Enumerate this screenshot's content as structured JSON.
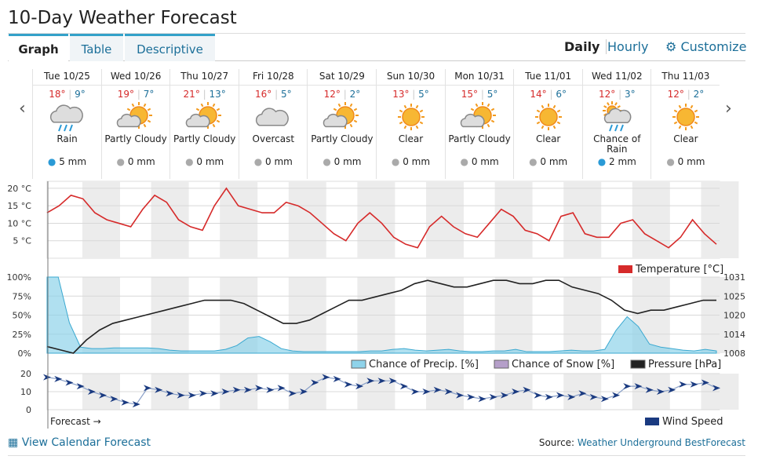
{
  "header": {
    "title": "10-Day Weather Forecast",
    "tabs": [
      "Graph",
      "Table",
      "Descriptive"
    ],
    "modes": [
      "Daily",
      "Hourly"
    ],
    "customize": "Customize"
  },
  "days": [
    {
      "day": "Tue 10/25",
      "hi": "18°",
      "lo": "9°",
      "condition": "Rain",
      "precip": "5 mm"
    },
    {
      "day": "Wed 10/26",
      "hi": "19°",
      "lo": "7°",
      "condition": "Partly Cloudy",
      "precip": "0 mm"
    },
    {
      "day": "Thu 10/27",
      "hi": "21°",
      "lo": "13°",
      "condition": "Partly Cloudy",
      "precip": "0 mm"
    },
    {
      "day": "Fri 10/28",
      "hi": "16°",
      "lo": "5°",
      "condition": "Overcast",
      "precip": "0 mm"
    },
    {
      "day": "Sat 10/29",
      "hi": "12°",
      "lo": "2°",
      "condition": "Partly Cloudy",
      "precip": "0 mm"
    },
    {
      "day": "Sun 10/30",
      "hi": "13°",
      "lo": "5°",
      "condition": "Clear",
      "precip": "0 mm"
    },
    {
      "day": "Mon 10/31",
      "hi": "15°",
      "lo": "5°",
      "condition": "Partly Cloudy",
      "precip": "0 mm"
    },
    {
      "day": "Tue 11/01",
      "hi": "14°",
      "lo": "6°",
      "condition": "Clear",
      "precip": "0 mm"
    },
    {
      "day": "Wed 11/02",
      "hi": "12°",
      "lo": "3°",
      "condition": "Chance of Rain",
      "precip": "2 mm"
    },
    {
      "day": "Thu 11/03",
      "hi": "12°",
      "lo": "2°",
      "condition": "Clear",
      "precip": "0 mm"
    }
  ],
  "temperature_chart": {
    "type": "line",
    "ylim": [
      0,
      22
    ],
    "yticks": [
      {
        "value": 5,
        "label": "5 °C"
      },
      {
        "value": 10,
        "label": "10 °C"
      },
      {
        "value": 15,
        "label": "15 °C"
      },
      {
        "value": 20,
        "label": "20 °C"
      }
    ],
    "series": [
      {
        "name": "Temperature [°C]",
        "color": "#d62a2a",
        "values": [
          13,
          15,
          18,
          17,
          13,
          11,
          10,
          9,
          14,
          18,
          16,
          11,
          9,
          8,
          15,
          20,
          15,
          14,
          13,
          13,
          16,
          15,
          13,
          10,
          7,
          5,
          10,
          13,
          10,
          6,
          4,
          3,
          9,
          12,
          9,
          7,
          6,
          10,
          14,
          12,
          8,
          7,
          5,
          12,
          13,
          7,
          6,
          6,
          10,
          11,
          7,
          5,
          3,
          6,
          11,
          7,
          4
        ]
      }
    ]
  },
  "precip_chart": {
    "type": "area",
    "ylim": [
      0,
      100
    ],
    "yticks": [
      {
        "value": 0,
        "label": "0%"
      },
      {
        "value": 25,
        "label": "25%"
      },
      {
        "value": 50,
        "label": "50%"
      },
      {
        "value": 75,
        "label": "75%"
      },
      {
        "value": 100,
        "label": "100%"
      }
    ],
    "y2lim": [
      1008,
      1031
    ],
    "y2ticks": [
      1008,
      {
        "value": 1013.75,
        "label": "1014"
      },
      {
        "value": 1019.5,
        "label": "1020"
      },
      {
        "value": 1025.25,
        "label": "1025"
      },
      1031
    ],
    "series": [
      {
        "name": "Chance of Precip. [%]",
        "color": "#8fd3ea",
        "values": [
          100,
          100,
          40,
          8,
          6,
          6,
          7,
          7,
          7,
          7,
          6,
          4,
          3,
          3,
          3,
          3,
          5,
          10,
          20,
          22,
          15,
          6,
          3,
          2,
          2,
          2,
          2,
          2,
          2,
          3,
          3,
          5,
          6,
          4,
          3,
          4,
          5,
          3,
          2,
          2,
          3,
          3,
          5,
          2,
          2,
          2,
          3,
          4,
          3,
          3,
          5,
          30,
          48,
          35,
          12,
          8,
          6,
          4,
          3,
          5,
          3
        ]
      },
      {
        "name": "Chance of Snow [%]",
        "color": "#b59fc9",
        "values": []
      },
      {
        "name": "Pressure [hPa]",
        "color": "#222222",
        "axis": "y2",
        "values": [
          1010,
          1009,
          1008,
          1012,
          1015,
          1017,
          1018,
          1019,
          1020,
          1021,
          1022,
          1023,
          1024,
          1024,
          1024,
          1023,
          1021,
          1019,
          1017,
          1017,
          1018,
          1020,
          1022,
          1024,
          1024,
          1025,
          1026,
          1027,
          1029,
          1030,
          1029,
          1028,
          1028,
          1029,
          1030,
          1030,
          1029,
          1029,
          1030,
          1030,
          1028,
          1027,
          1026,
          1024,
          1021,
          1020,
          1021,
          1021,
          1022,
          1023,
          1024,
          1024
        ]
      }
    ]
  },
  "wind_chart": {
    "type": "line",
    "ylim": [
      0,
      20
    ],
    "yticks": [
      0,
      10,
      20
    ],
    "series": [
      {
        "name": "Wind Speed",
        "color": "#1a3a80",
        "values": [
          18,
          17,
          15,
          13,
          10,
          8,
          6,
          4,
          3,
          12,
          11,
          9,
          8,
          8,
          9,
          9,
          10,
          11,
          11,
          12,
          11,
          12,
          9,
          10,
          15,
          18,
          17,
          14,
          13,
          16,
          16,
          16,
          13,
          10,
          10,
          11,
          10,
          8,
          7,
          6,
          7,
          8,
          10,
          11,
          8,
          7,
          8,
          7,
          9,
          7,
          6,
          8,
          13,
          13,
          11,
          10,
          11,
          14,
          14,
          15,
          12
        ]
      }
    ],
    "annotation": "Forecast →"
  },
  "footer": {
    "link": "View Calendar Forecast",
    "source_label": "Source:",
    "source": "Weather Underground BestForecast"
  }
}
